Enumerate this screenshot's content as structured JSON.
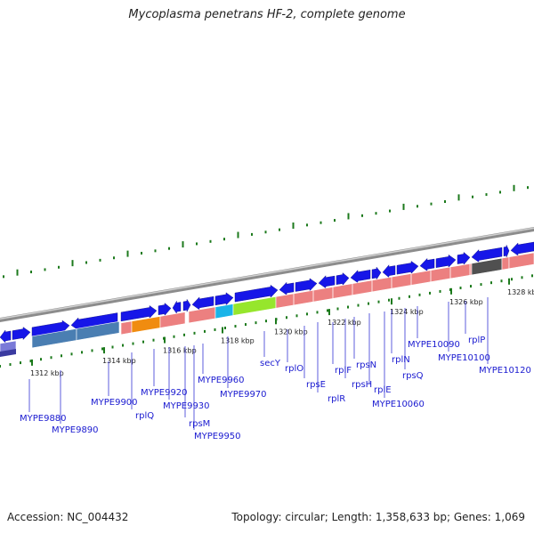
{
  "title": "Mycoplasma penetrans HF-2, complete genome",
  "footer": {
    "accession": "Accession: NC_004432",
    "summary": "Topology: circular; Length: 1,358,633 bp; Genes: 1,069"
  },
  "colors": {
    "backbone": "#8c8c8c",
    "forward_gene": "#1616e8",
    "ribosomal": "#ec8080",
    "secY": "#96e62c",
    "cyan_gene": "#1ab4e8",
    "orange_gene": "#f08c10",
    "steelblue_gene": "#4a7eb2",
    "dark_gene": "#505050",
    "tick": "#1c7a1c",
    "label": "#1a1ad0"
  },
  "ticks": [
    "1312 kbp",
    "1314 kbp",
    "1316 kbp",
    "1318 kbp",
    "1320 kbp",
    "1322 kbp",
    "1324 kbp",
    "1326 kbp",
    "1328 kbp"
  ],
  "genes": [
    "MYPE9880",
    "MYPE9890",
    "MYPE9900",
    "rplQ",
    "MYPE9920",
    "MYPE9930",
    "rpsM",
    "MYPE9950",
    "MYPE9960",
    "MYPE9970",
    "secY",
    "rplO",
    "rpsE",
    "rplR",
    "rplF",
    "rpsH",
    "rpsN",
    "rplE",
    "MYPE10060",
    "rplN",
    "rpsQ",
    "MYPE10090",
    "MYPE10100",
    "rplP",
    "MYPE10120"
  ]
}
